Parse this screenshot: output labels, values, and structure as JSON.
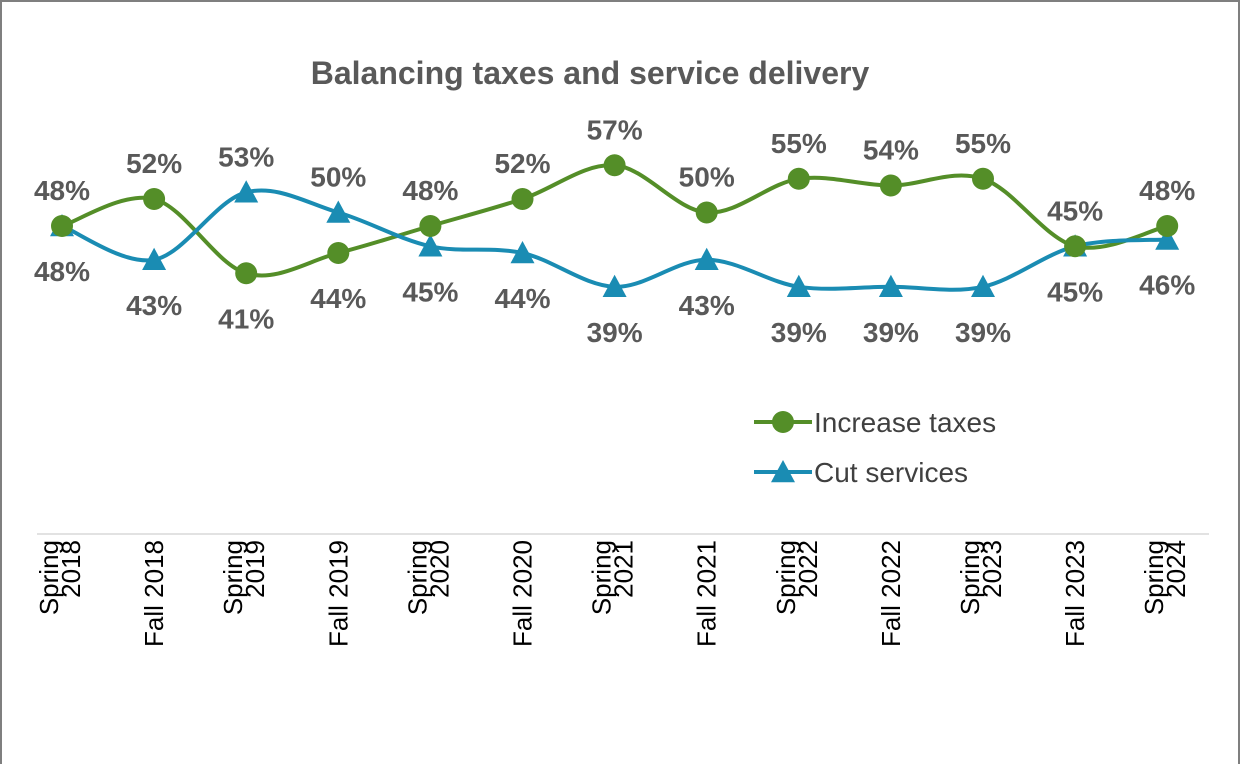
{
  "chart_data": {
    "type": "line",
    "title": "Balancing taxes and service delivery",
    "xlabel": "",
    "ylabel": "",
    "x": [
      "Spring 2018",
      "Fall 2018",
      "Spring 2019",
      "Fall 2019",
      "Spring 2020",
      "Fall 2020",
      "Spring 2021",
      "Fall 2021",
      "Spring 2022",
      "Fall 2022",
      "Spring 2023",
      "Fall 2023",
      "Spring 2024"
    ],
    "x_tick_lines": [
      [
        "Spring",
        "2018"
      ],
      [
        "Fall 2018"
      ],
      [
        "Spring",
        "2019"
      ],
      [
        "Fall 2019"
      ],
      [
        "Spring",
        "2020"
      ],
      [
        "Fall 2020"
      ],
      [
        "Spring",
        "2021"
      ],
      [
        "Fall 2021"
      ],
      [
        "Spring",
        "2022"
      ],
      [
        "Fall 2022"
      ],
      [
        "Spring",
        "2023"
      ],
      [
        "Fall 2023"
      ],
      [
        "Spring",
        "2024"
      ]
    ],
    "series": [
      {
        "name": "Increase taxes",
        "values": [
          48,
          52,
          41,
          44,
          48,
          52,
          57,
          50,
          55,
          54,
          55,
          45,
          48
        ],
        "color": "#548e28",
        "marker": "circle"
      },
      {
        "name": "Cut services",
        "values": [
          48,
          43,
          53,
          50,
          45,
          44,
          39,
          43,
          39,
          39,
          39,
          45,
          46
        ],
        "color": "#1a8cb3",
        "marker": "triangle"
      }
    ],
    "value_suffix": "%",
    "smooth": true,
    "grid": false,
    "y_axis_visible": false,
    "legend_position": "right-middle"
  }
}
